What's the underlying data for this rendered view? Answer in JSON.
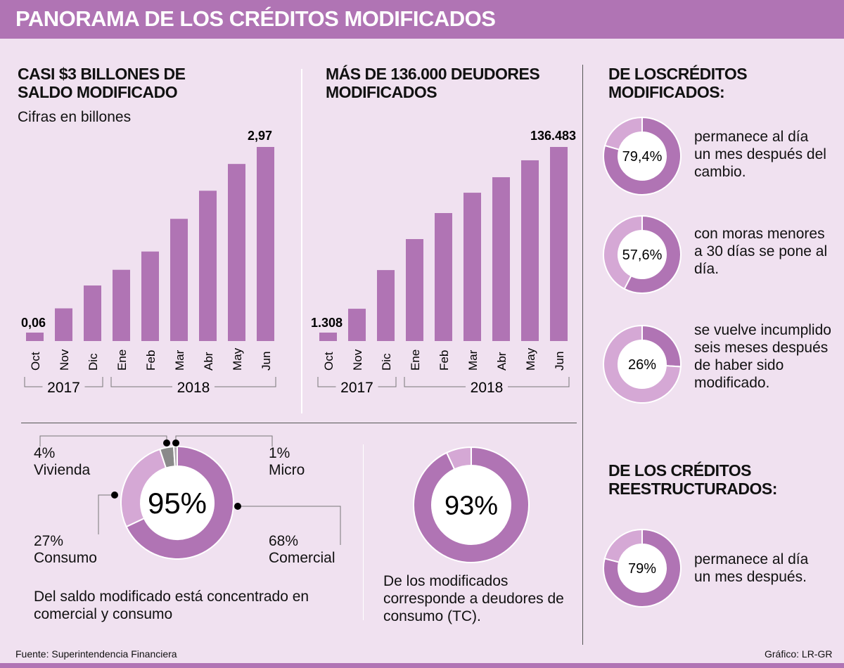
{
  "header": {
    "title": "PANORAMA DE LOS CRÉDITOS MODIFICADOS"
  },
  "colors": {
    "primary": "#b074b4",
    "light": "#d5a8d5",
    "gray": "#8a8a8a",
    "background": "#f0e1f0"
  },
  "chart_data": [
    {
      "type": "bar",
      "title": "CASI $3 BILLONES DE SALDO MODIFICADO",
      "subtitle": "Cifras en billones",
      "categories": [
        "Oct",
        "Nov",
        "Dic",
        "Ene",
        "Feb",
        "Mar",
        "Abr",
        "May",
        "Jun"
      ],
      "year_groups": [
        {
          "label": "2017",
          "span": [
            "Oct",
            "Dic"
          ]
        },
        {
          "label": "2018",
          "span": [
            "Ene",
            "Jun"
          ]
        }
      ],
      "values": [
        0.06,
        0.5,
        0.85,
        1.09,
        1.37,
        1.87,
        2.3,
        2.71,
        2.97
      ],
      "data_labels": {
        "first": "0,06",
        "last": "2,97"
      }
    },
    {
      "type": "bar",
      "title": "MÁS DE 136.000 DEUDORES MODIFICADOS",
      "categories": [
        "Oct",
        "Nov",
        "Dic",
        "Ene",
        "Feb",
        "Mar",
        "Abr",
        "May",
        "Jun"
      ],
      "year_groups": [
        {
          "label": "2017",
          "span": [
            "Oct",
            "Dic"
          ]
        },
        {
          "label": "2018",
          "span": [
            "Ene",
            "Jun"
          ]
        }
      ],
      "values": [
        1308,
        22700,
        49900,
        71700,
        90000,
        104300,
        115200,
        127100,
        136483
      ],
      "data_labels": {
        "first": "1.308",
        "last": "136.483"
      }
    },
    {
      "type": "pie",
      "center_label": "95%",
      "caption": "Del saldo modificado está concentrado en comercial y consumo",
      "slices": [
        {
          "label": "Comercial",
          "value": 68,
          "text": "68%"
        },
        {
          "label": "Consumo",
          "value": 27,
          "text": "27%"
        },
        {
          "label": "Vivienda",
          "value": 4,
          "text": "4%"
        },
        {
          "label": "Micro",
          "value": 1,
          "text": "1%"
        }
      ]
    },
    {
      "type": "pie",
      "center_label": "93%",
      "value": 93,
      "caption": "De los modificados corresponde a deudores de consumo (TC)."
    }
  ],
  "modified": {
    "title": "DE LOSCRÉDITOS MODIFICADOS:",
    "items": [
      {
        "value": 79.4,
        "label": "79,4%",
        "text": "permanece al día un mes después del cambio."
      },
      {
        "value": 57.6,
        "label": "57,6%",
        "text": "con moras menores a 30 días se pone al día."
      },
      {
        "value": 26,
        "label": "26%",
        "text": "se vuelve incumplido seis meses después de haber sido modificado."
      }
    ]
  },
  "restructured": {
    "title": "DE LOS CRÉDITOS REESTRUCTURADOS:",
    "items": [
      {
        "value": 79,
        "label": "79%",
        "text": "permanece al día un mes después."
      }
    ]
  },
  "footer": {
    "source": "Fuente: Superintendencia Financiera",
    "credit": "Gráfico: LR-GR"
  }
}
